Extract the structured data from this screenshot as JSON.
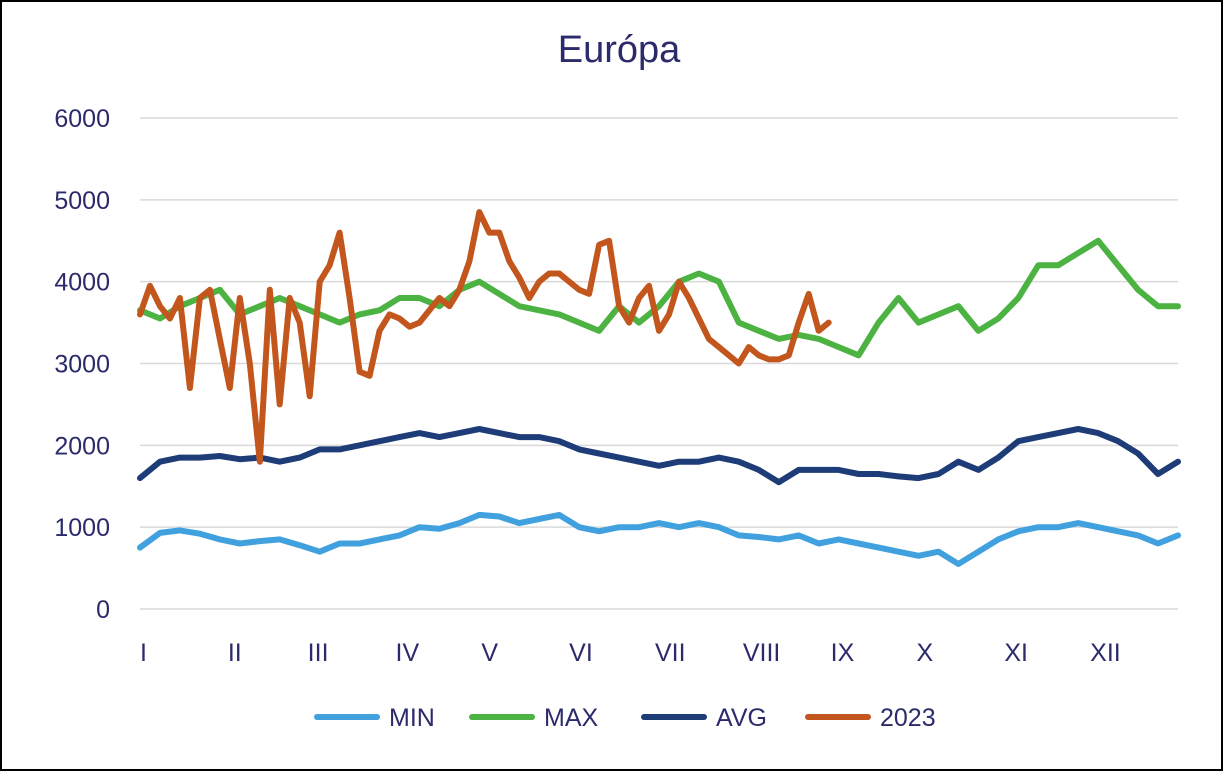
{
  "chart_data": {
    "type": "line",
    "title": "Európa",
    "xlabel": "",
    "ylabel": "",
    "ylim": [
      0,
      6000
    ],
    "yticks": [
      "0",
      "1000",
      "2000",
      "3000",
      "4000",
      "5000",
      "6000"
    ],
    "xlim": [
      0,
      52
    ],
    "month_ticks": [
      {
        "label": "I",
        "week": 0
      },
      {
        "label": "II",
        "week": 4.4
      },
      {
        "label": "III",
        "week": 8.4
      },
      {
        "label": "IV",
        "week": 12.8
      },
      {
        "label": "V",
        "week": 17.1
      },
      {
        "label": "VI",
        "week": 21.5
      },
      {
        "label": "VII",
        "week": 25.8
      },
      {
        "label": "VIII",
        "week": 30.2
      },
      {
        "label": "IX",
        "week": 34.6
      },
      {
        "label": "X",
        "week": 38.9
      },
      {
        "label": "XI",
        "week": 43.3
      },
      {
        "label": "XII",
        "week": 47.6
      }
    ],
    "grid": true,
    "legend_position": "bottom",
    "series": [
      {
        "name": "MIN",
        "color": "#41a1de",
        "x": [
          0,
          1,
          2,
          3,
          4,
          5,
          6,
          7,
          8,
          9,
          10,
          11,
          12,
          13,
          14,
          15,
          16,
          17,
          18,
          19,
          20,
          21,
          22,
          23,
          24,
          25,
          26,
          27,
          28,
          29,
          30,
          31,
          32,
          33,
          34,
          35,
          36,
          37,
          38,
          39,
          40,
          41,
          42,
          43,
          44,
          45,
          46,
          47,
          48,
          49,
          50,
          51,
          52
        ],
        "values": [
          750,
          930,
          960,
          920,
          850,
          800,
          830,
          850,
          780,
          700,
          800,
          800,
          850,
          900,
          1000,
          980,
          1050,
          1150,
          1130,
          1050,
          1100,
          1150,
          1000,
          950,
          1000,
          1000,
          1050,
          1000,
          1050,
          1000,
          900,
          880,
          850,
          900,
          800,
          850,
          800,
          750,
          700,
          650,
          700,
          550,
          700,
          850,
          950,
          1000,
          1000,
          1050,
          1000,
          950,
          900,
          800,
          900
        ]
      },
      {
        "name": "MAX",
        "color": "#4cb343",
        "x": [
          0,
          1,
          2,
          3,
          4,
          5,
          6,
          7,
          8,
          9,
          10,
          11,
          12,
          13,
          14,
          15,
          16,
          17,
          18,
          19,
          20,
          21,
          22,
          23,
          24,
          25,
          26,
          27,
          28,
          29,
          30,
          31,
          32,
          33,
          34,
          35,
          36,
          37,
          38,
          39,
          40,
          41,
          42,
          43,
          44,
          45,
          46,
          47,
          48,
          49,
          50,
          51,
          52
        ],
        "values": [
          3650,
          3550,
          3700,
          3800,
          3900,
          3600,
          3700,
          3800,
          3700,
          3600,
          3500,
          3600,
          3650,
          3800,
          3800,
          3700,
          3900,
          4000,
          3850,
          3700,
          3650,
          3600,
          3500,
          3400,
          3700,
          3500,
          3700,
          4000,
          4100,
          4000,
          3500,
          3400,
          3300,
          3350,
          3300,
          3200,
          3100,
          3500,
          3800,
          3500,
          3600,
          3700,
          3400,
          3550,
          3800,
          4200,
          4200,
          4350,
          4500,
          4200,
          3900,
          3700,
          3700
        ]
      },
      {
        "name": "AVG",
        "color": "#1e3c78",
        "x": [
          0,
          1,
          2,
          3,
          4,
          5,
          6,
          7,
          8,
          9,
          10,
          11,
          12,
          13,
          14,
          15,
          16,
          17,
          18,
          19,
          20,
          21,
          22,
          23,
          24,
          25,
          26,
          27,
          28,
          29,
          30,
          31,
          32,
          33,
          34,
          35,
          36,
          37,
          38,
          39,
          40,
          41,
          42,
          43,
          44,
          45,
          46,
          47,
          48,
          49,
          50,
          51,
          52
        ],
        "values": [
          1600,
          1800,
          1850,
          1850,
          1870,
          1830,
          1850,
          1800,
          1850,
          1950,
          1950,
          2000,
          2050,
          2100,
          2150,
          2100,
          2150,
          2200,
          2150,
          2100,
          2100,
          2050,
          1950,
          1900,
          1850,
          1800,
          1750,
          1800,
          1800,
          1850,
          1800,
          1700,
          1550,
          1700,
          1700,
          1700,
          1650,
          1650,
          1620,
          1600,
          1650,
          1800,
          1700,
          1850,
          2050,
          2100,
          2150,
          2200,
          2150,
          2050,
          1900,
          1650,
          1800
        ]
      },
      {
        "name": "2023",
        "color": "#c2561c",
        "x": [
          0,
          0.5,
          1,
          1.5,
          2,
          2.5,
          3,
          3.5,
          4,
          4.5,
          5,
          5.5,
          6,
          6.5,
          7,
          7.5,
          8,
          8.5,
          9,
          9.5,
          10,
          10.5,
          11,
          11.5,
          12,
          12.5,
          13,
          13.5,
          14,
          14.5,
          15,
          15.5,
          16,
          16.5,
          17,
          17.5,
          18,
          18.5,
          19,
          19.5,
          20,
          20.5,
          21,
          21.5,
          22,
          22.5,
          23,
          23.5,
          24,
          24.5,
          25,
          25.5,
          26,
          26.5,
          27,
          27.5,
          28,
          28.5,
          29,
          29.5,
          30,
          30.5,
          31,
          31.5,
          32,
          32.5,
          33,
          33.5,
          34,
          34.5
        ],
        "values": [
          3600,
          3950,
          3700,
          3550,
          3800,
          2700,
          3800,
          3900,
          3300,
          2700,
          3800,
          3000,
          1800,
          3900,
          2500,
          3800,
          3500,
          2600,
          4000,
          4200,
          4600,
          3800,
          2900,
          2850,
          3400,
          3600,
          3550,
          3450,
          3500,
          3650,
          3800,
          3700,
          3900,
          4250,
          4850,
          4600,
          4600,
          4250,
          4050,
          3800,
          4000,
          4100,
          4100,
          4000,
          3900,
          3850,
          4450,
          4500,
          3700,
          3500,
          3800,
          3950,
          3400,
          3600,
          4000,
          3800,
          3550,
          3300,
          3200,
          3100,
          3000,
          3200,
          3100,
          3050,
          3050,
          3100,
          3500,
          3850,
          3400,
          3500
        ]
      }
    ]
  }
}
